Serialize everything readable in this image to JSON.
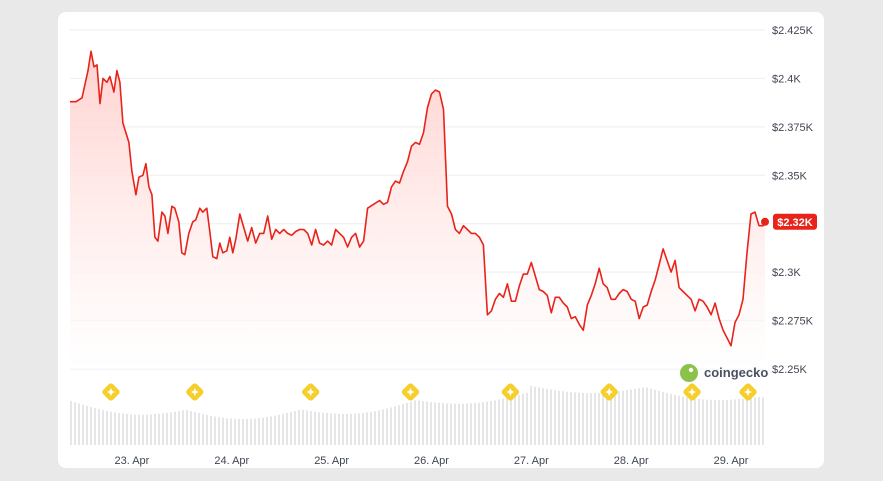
{
  "colors": {
    "line": "#e8231a",
    "fill": "#ffd9d7",
    "grid": "#eeeeee",
    "volume": "#e6e6e6",
    "badge": "#e8231a",
    "event": "#f6cf2c",
    "watermark_green": "#8bc34a"
  },
  "watermark": {
    "text": "coingecko",
    "icon": "gecko-logo-icon"
  },
  "event_icon": "star-badge-icon",
  "chart_data": {
    "type": "line",
    "title": "",
    "xlabel": "",
    "ylabel": "",
    "ylim": [
      2250,
      2425
    ],
    "yticks": [
      {
        "value": 2425,
        "label": "$2.425K"
      },
      {
        "value": 2400,
        "label": "$2.4K"
      },
      {
        "value": 2375,
        "label": "$2.375K"
      },
      {
        "value": 2350,
        "label": "$2.35K"
      },
      {
        "value": 2325,
        "label": "$2.325K",
        "hidden": true
      },
      {
        "value": 2300,
        "label": "$2.3K"
      },
      {
        "value": 2275,
        "label": "$2.275K"
      },
      {
        "value": 2250,
        "label": "$2.25K"
      }
    ],
    "xticks": [
      {
        "t": 23.0,
        "label": "23. Apr"
      },
      {
        "t": 24.0,
        "label": "24. Apr"
      },
      {
        "t": 25.0,
        "label": "25. Apr"
      },
      {
        "t": 26.0,
        "label": "26. Apr"
      },
      {
        "t": 27.0,
        "label": "27. Apr"
      },
      {
        "t": 28.0,
        "label": "28. Apr"
      },
      {
        "t": 29.0,
        "label": "29. Apr"
      }
    ],
    "last_price_label": "$2.32K",
    "events_t": [
      22.79,
      23.63,
      24.79,
      25.79,
      26.79,
      27.78,
      28.61,
      29.17
    ],
    "series": [
      {
        "points": [
          [
            22.38,
            2388
          ],
          [
            22.44,
            2388
          ],
          [
            22.5,
            2390
          ],
          [
            22.56,
            2404
          ],
          [
            22.59,
            2414
          ],
          [
            22.62,
            2406
          ],
          [
            22.65,
            2407
          ],
          [
            22.68,
            2387
          ],
          [
            22.71,
            2400
          ],
          [
            22.75,
            2398
          ],
          [
            22.78,
            2401
          ],
          [
            22.82,
            2393
          ],
          [
            22.85,
            2404
          ],
          [
            22.88,
            2398
          ],
          [
            22.91,
            2377
          ],
          [
            22.97,
            2367
          ],
          [
            23.0,
            2352
          ],
          [
            23.04,
            2340
          ],
          [
            23.07,
            2349
          ],
          [
            23.11,
            2350
          ],
          [
            23.14,
            2356
          ],
          [
            23.17,
            2344
          ],
          [
            23.2,
            2340
          ],
          [
            23.23,
            2318
          ],
          [
            23.26,
            2316
          ],
          [
            23.3,
            2331
          ],
          [
            23.33,
            2329
          ],
          [
            23.36,
            2320
          ],
          [
            23.4,
            2334
          ],
          [
            23.43,
            2333
          ],
          [
            23.47,
            2326
          ],
          [
            23.5,
            2310
          ],
          [
            23.53,
            2309
          ],
          [
            23.57,
            2320
          ],
          [
            23.61,
            2326
          ],
          [
            23.64,
            2327
          ],
          [
            23.68,
            2333
          ],
          [
            23.71,
            2331
          ],
          [
            23.75,
            2333
          ],
          [
            23.78,
            2321
          ],
          [
            23.81,
            2308
          ],
          [
            23.85,
            2307
          ],
          [
            23.88,
            2315
          ],
          [
            23.91,
            2310
          ],
          [
            23.95,
            2311
          ],
          [
            23.98,
            2318
          ],
          [
            24.01,
            2310
          ],
          [
            24.04,
            2317
          ],
          [
            24.08,
            2330
          ],
          [
            24.12,
            2323
          ],
          [
            24.16,
            2316
          ],
          [
            24.2,
            2323
          ],
          [
            24.24,
            2315
          ],
          [
            24.28,
            2320
          ],
          [
            24.32,
            2320
          ],
          [
            24.36,
            2329
          ],
          [
            24.4,
            2317
          ],
          [
            24.44,
            2322
          ],
          [
            24.48,
            2320
          ],
          [
            24.52,
            2322
          ],
          [
            24.56,
            2320
          ],
          [
            24.6,
            2319
          ],
          [
            24.64,
            2321
          ],
          [
            24.68,
            2322
          ],
          [
            24.72,
            2322
          ],
          [
            24.76,
            2320
          ],
          [
            24.8,
            2314
          ],
          [
            24.84,
            2322
          ],
          [
            24.88,
            2315
          ],
          [
            24.92,
            2314
          ],
          [
            24.96,
            2316
          ],
          [
            25.0,
            2314
          ],
          [
            25.04,
            2322
          ],
          [
            25.08,
            2320
          ],
          [
            25.12,
            2318
          ],
          [
            25.16,
            2313
          ],
          [
            25.2,
            2318
          ],
          [
            25.24,
            2320
          ],
          [
            25.28,
            2313
          ],
          [
            25.32,
            2316
          ],
          [
            25.36,
            2333
          ],
          [
            25.42,
            2335
          ],
          [
            25.48,
            2337
          ],
          [
            25.52,
            2335
          ],
          [
            25.56,
            2336
          ],
          [
            25.6,
            2344
          ],
          [
            25.64,
            2347
          ],
          [
            25.68,
            2346
          ],
          [
            25.72,
            2352
          ],
          [
            25.76,
            2357
          ],
          [
            25.8,
            2365
          ],
          [
            25.84,
            2367
          ],
          [
            25.88,
            2366
          ],
          [
            25.92,
            2372
          ],
          [
            25.96,
            2385
          ],
          [
            26.0,
            2392
          ],
          [
            26.04,
            2394
          ],
          [
            26.08,
            2393
          ],
          [
            26.12,
            2384
          ],
          [
            26.16,
            2334
          ],
          [
            26.2,
            2330
          ],
          [
            26.24,
            2322
          ],
          [
            26.28,
            2320
          ],
          [
            26.32,
            2324
          ],
          [
            26.36,
            2322
          ],
          [
            26.4,
            2320
          ],
          [
            26.44,
            2320
          ],
          [
            26.48,
            2318
          ],
          [
            26.52,
            2314
          ],
          [
            26.56,
            2278
          ],
          [
            26.6,
            2280
          ],
          [
            26.64,
            2286
          ],
          [
            26.68,
            2289
          ],
          [
            26.72,
            2287
          ],
          [
            26.76,
            2294
          ],
          [
            26.8,
            2285
          ],
          [
            26.84,
            2285
          ],
          [
            26.88,
            2293
          ],
          [
            26.92,
            2299
          ],
          [
            26.96,
            2299
          ],
          [
            27.0,
            2305
          ],
          [
            27.04,
            2298
          ],
          [
            27.08,
            2291
          ],
          [
            27.12,
            2290
          ],
          [
            27.16,
            2288
          ],
          [
            27.2,
            2279
          ],
          [
            27.24,
            2287
          ],
          [
            27.28,
            2287
          ],
          [
            27.32,
            2284
          ],
          [
            27.36,
            2282
          ],
          [
            27.4,
            2276
          ],
          [
            27.44,
            2277
          ],
          [
            27.48,
            2273
          ],
          [
            27.52,
            2270
          ],
          [
            27.56,
            2283
          ],
          [
            27.6,
            2288
          ],
          [
            27.64,
            2294
          ],
          [
            27.68,
            2302
          ],
          [
            27.72,
            2294
          ],
          [
            27.76,
            2292
          ],
          [
            27.8,
            2286
          ],
          [
            27.84,
            2286
          ],
          [
            27.88,
            2289
          ],
          [
            27.92,
            2291
          ],
          [
            27.96,
            2290
          ],
          [
            28.0,
            2286
          ],
          [
            28.04,
            2285
          ],
          [
            28.08,
            2276
          ],
          [
            28.12,
            2282
          ],
          [
            28.16,
            2283
          ],
          [
            28.2,
            2290
          ],
          [
            28.24,
            2296
          ],
          [
            28.28,
            2304
          ],
          [
            28.32,
            2312
          ],
          [
            28.36,
            2306
          ],
          [
            28.4,
            2300
          ],
          [
            28.44,
            2306
          ],
          [
            28.48,
            2292
          ],
          [
            28.52,
            2290
          ],
          [
            28.56,
            2288
          ],
          [
            28.6,
            2286
          ],
          [
            28.64,
            2280
          ],
          [
            28.68,
            2286
          ],
          [
            28.72,
            2285
          ],
          [
            28.76,
            2282
          ],
          [
            28.8,
            2278
          ],
          [
            28.84,
            2284
          ],
          [
            28.88,
            2276
          ],
          [
            28.92,
            2270
          ],
          [
            28.96,
            2266
          ],
          [
            29.0,
            2262
          ],
          [
            29.04,
            2274
          ],
          [
            29.08,
            2278
          ],
          [
            29.12,
            2286
          ],
          [
            29.16,
            2310
          ],
          [
            29.2,
            2330
          ],
          [
            29.24,
            2331
          ],
          [
            29.28,
            2324
          ],
          [
            29.32,
            2324
          ],
          [
            29.34,
            2326
          ]
        ]
      }
    ]
  }
}
